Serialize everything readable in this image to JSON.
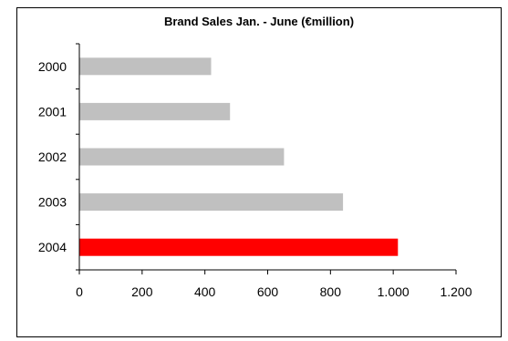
{
  "chart_data": {
    "type": "bar",
    "orientation": "horizontal",
    "title": "Brand Sales Jan. - June   (€million)",
    "categories": [
      "2000",
      "2001",
      "2002",
      "2003",
      "2004"
    ],
    "values": [
      420,
      480,
      652,
      840,
      1015
    ],
    "bar_colors": [
      "#c0c0c0",
      "#c0c0c0",
      "#c0c0c0",
      "#c0c0c0",
      "#ff0000"
    ],
    "xlim": [
      0,
      1200
    ],
    "xticks": [
      0,
      200,
      400,
      600,
      800,
      1000,
      1200
    ],
    "xtick_labels": [
      "0",
      "200",
      "400",
      "600",
      "800",
      "1.000",
      "1.200"
    ],
    "grid": false,
    "legend": "none"
  }
}
